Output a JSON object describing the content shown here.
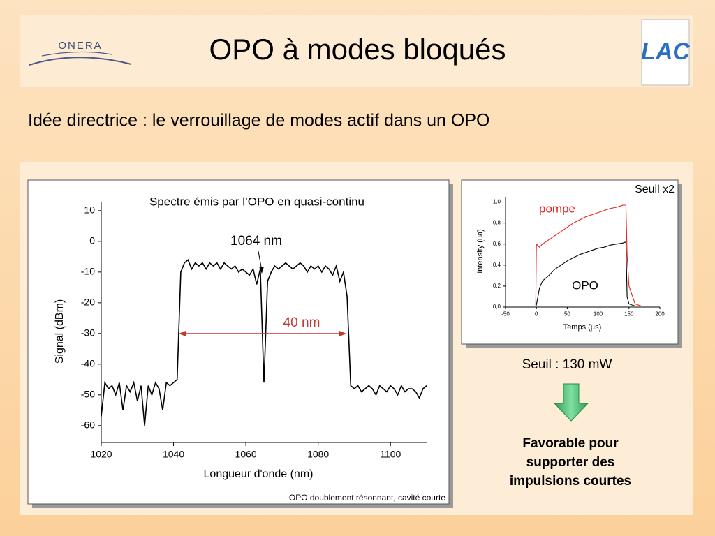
{
  "header": {
    "title": "OPO à modes bloqués",
    "logo_left": "ONERA",
    "logo_right": "LAC"
  },
  "subtitle": "Idée directrice : le verrouillage de modes actif dans un OPO",
  "chart_data": [
    {
      "type": "line",
      "title": "Spectre émis par l’OPO en quasi-continu",
      "xlabel": "Longueur d'onde (nm)",
      "ylabel": "Signal (dBm)",
      "annotations": [
        "1064 nm",
        "40 nm"
      ],
      "note": "OPO doublement résonnant, cavité courte",
      "xlim": [
        1020,
        1110
      ],
      "ylim": [
        -65.5,
        12.7
      ],
      "xticks": [
        1020,
        1040,
        1060,
        1080,
        1100
      ],
      "yticks": [
        10,
        0,
        -10,
        -20,
        -30,
        -40,
        -50,
        -60
      ],
      "x": [
        1020,
        1021,
        1022,
        1023,
        1024,
        1025,
        1026,
        1027,
        1028,
        1029,
        1030,
        1031,
        1032,
        1033,
        1034,
        1035,
        1036,
        1037,
        1038,
        1039,
        1040,
        1041,
        1042,
        1043,
        1044,
        1045,
        1046,
        1047,
        1048,
        1049,
        1050,
        1051,
        1052,
        1053,
        1054,
        1055,
        1056,
        1057,
        1058,
        1059,
        1060,
        1061,
        1062,
        1063,
        1064,
        1065,
        1066,
        1067,
        1068,
        1069,
        1070,
        1071,
        1072,
        1073,
        1074,
        1075,
        1076,
        1077,
        1078,
        1079,
        1080,
        1081,
        1082,
        1083,
        1084,
        1085,
        1086,
        1087,
        1088,
        1089,
        1090,
        1091,
        1092,
        1093,
        1094,
        1095,
        1096,
        1097,
        1098,
        1099,
        1100,
        1101,
        1102,
        1103,
        1104,
        1105,
        1106,
        1107,
        1108,
        1109,
        1110
      ],
      "series": [
        {
          "color": "#000000",
          "values": [
            -57,
            -46,
            -48,
            -47,
            -50,
            -46,
            -55,
            -47,
            -49,
            -46,
            -52,
            -47,
            -60,
            -47,
            -50,
            -46,
            -48,
            -55,
            -46,
            -47,
            -46,
            -45,
            -10,
            -7,
            -6,
            -9,
            -7,
            -8,
            -7,
            -9,
            -7,
            -8,
            -7,
            -9,
            -7,
            -8,
            -9,
            -8,
            -10,
            -9,
            -10,
            -11,
            -9,
            -14,
            -9,
            -46,
            -13,
            -10,
            -8,
            -9,
            -8,
            -7,
            -8,
            -9,
            -8,
            -7,
            -8,
            -10,
            -8,
            -9,
            -8,
            -10,
            -8,
            -9,
            -11,
            -8,
            -13,
            -10,
            -18,
            -47,
            -48,
            -47,
            -49,
            -48,
            -47,
            -48,
            -50,
            -47,
            -48,
            -49,
            -47,
            -48,
            -50,
            -47,
            -49,
            -48,
            -48,
            -49,
            -51,
            -48,
            -47
          ]
        }
      ]
    },
    {
      "type": "line",
      "xlabel": "Temps (µs)",
      "ylabel": "Intensity (ua)",
      "annotations": [
        "Seuil x2"
      ],
      "xlim": [
        -50,
        200
      ],
      "ylim": [
        0,
        1.05
      ],
      "xticks": [
        -50,
        0,
        50,
        100,
        150,
        200
      ],
      "yticks": [
        {
          "value": 0,
          "label": "0,0"
        },
        {
          "value": 0.2,
          "label": "0,2"
        },
        {
          "value": 0.4,
          "label": "0,4"
        },
        {
          "value": 0.6,
          "label": "0,6"
        },
        {
          "value": 0.8,
          "label": "0,8"
        },
        {
          "value": 1.0,
          "label": "1,0"
        }
      ],
      "x": [
        -20,
        -10,
        -1,
        0,
        5,
        10,
        20,
        30,
        40,
        50,
        60,
        70,
        80,
        90,
        100,
        110,
        120,
        130,
        140,
        145,
        147,
        150,
        160,
        170,
        180
      ],
      "series": [
        {
          "name": "pompe",
          "color": "#e8201c",
          "values": [
            0.01,
            0.01,
            0.01,
            0.6,
            0.57,
            0.6,
            0.64,
            0.68,
            0.72,
            0.76,
            0.8,
            0.83,
            0.86,
            0.88,
            0.9,
            0.92,
            0.94,
            0.95,
            0.97,
            0.97,
            0.5,
            0.2,
            0.03,
            0.01,
            0.01
          ]
        },
        {
          "name": "OPO",
          "color": "#000000",
          "values": [
            0.01,
            0.01,
            0.01,
            0.02,
            0.18,
            0.25,
            0.3,
            0.36,
            0.4,
            0.44,
            0.47,
            0.5,
            0.52,
            0.54,
            0.56,
            0.57,
            0.59,
            0.6,
            0.61,
            0.62,
            0.1,
            0.03,
            0.01,
            0.01,
            0.01
          ]
        }
      ]
    }
  ],
  "threshold": "Seuil : 130 mW",
  "conclusion": [
    "Favorable pour",
    "supporter des",
    "impulsions courtes"
  ]
}
